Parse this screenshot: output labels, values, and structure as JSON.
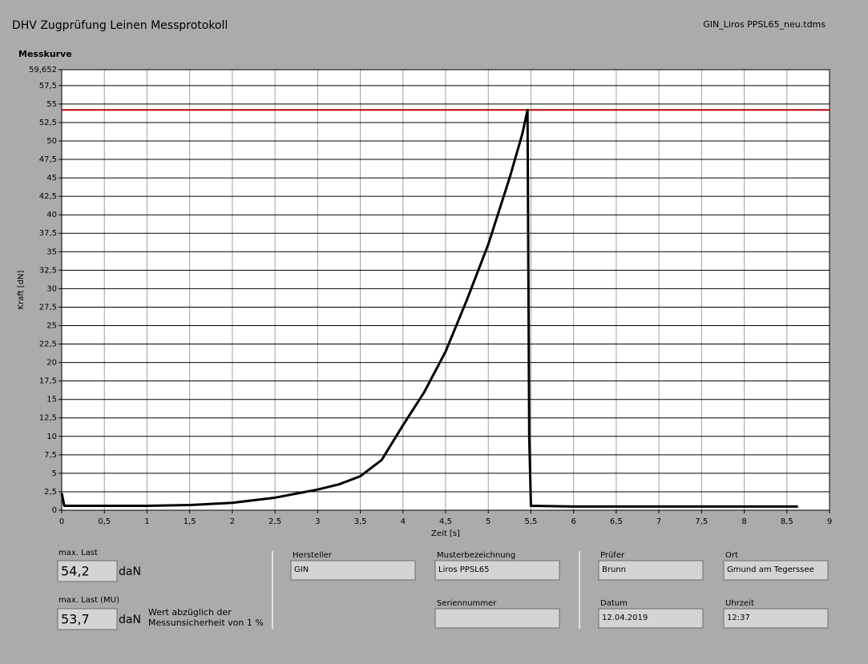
{
  "header": {
    "title": "DHV Zugprüfung Leinen Messprotokoll",
    "file": "GIN_Liros PPSL65_neu.tdms"
  },
  "chart_data": {
    "type": "line",
    "title": "Messkurve",
    "x_label": "Zeit [s]",
    "y_label": "Kraft [dN]",
    "x": [
      0,
      0.03,
      0.5,
      1,
      1.5,
      2,
      2.5,
      3,
      3.25,
      3.5,
      3.75,
      4,
      4.25,
      4.5,
      4.75,
      5,
      5.25,
      5.4,
      5.46,
      5.48,
      5.5,
      6,
      7,
      8,
      8.63
    ],
    "values": [
      2.3,
      0.6,
      0.6,
      0.6,
      0.7,
      1.0,
      1.7,
      2.8,
      3.5,
      4.6,
      6.8,
      11.5,
      16,
      21.5,
      28.5,
      36,
      45,
      51,
      54.2,
      10,
      0.6,
      0.5,
      0.5,
      0.5,
      0.5
    ],
    "color": "#000000",
    "reference_line": {
      "value": 54.2,
      "color": "#c00000"
    },
    "xlim": [
      0,
      9
    ],
    "ylim": [
      0,
      59.652
    ],
    "xticks": [
      0,
      {
        "value": 0.5,
        "label": "0,5"
      },
      1,
      {
        "value": 1.5,
        "label": "1,5"
      },
      2,
      {
        "value": 2.5,
        "label": "2,5"
      },
      3,
      {
        "value": 3.5,
        "label": "3,5"
      },
      4,
      {
        "value": 4.5,
        "label": "4,5"
      },
      5,
      {
        "value": 5.5,
        "label": "5,5"
      },
      6,
      {
        "value": 6.5,
        "label": "6,5"
      },
      7,
      {
        "value": 7.5,
        "label": "7,5"
      },
      8,
      {
        "value": 8.5,
        "label": "8,5"
      },
      9
    ],
    "yticks": [
      0,
      {
        "value": 2.5,
        "label": "2,5"
      },
      5,
      {
        "value": 7.5,
        "label": "7,5"
      },
      10,
      {
        "value": 12.5,
        "label": "12,5"
      },
      15,
      {
        "value": 17.5,
        "label": "17,5"
      },
      20,
      {
        "value": 22.5,
        "label": "22,5"
      },
      25,
      {
        "value": 27.5,
        "label": "27,5"
      },
      30,
      {
        "value": 32.5,
        "label": "32,5"
      },
      35,
      {
        "value": 37.5,
        "label": "37,5"
      },
      40,
      {
        "value": 42.5,
        "label": "42,5"
      },
      45,
      {
        "value": 47.5,
        "label": "47,5"
      },
      50,
      {
        "value": 52.5,
        "label": "52,5"
      },
      55,
      {
        "value": 57.5,
        "label": "57,5"
      },
      {
        "value": 59.652,
        "label": "59,652"
      }
    ],
    "grid": true
  },
  "max_load": {
    "label": "max. Last",
    "value": "54,2",
    "unit": "daN"
  },
  "max_load_mu": {
    "label": "max. Last (MU)",
    "value": "53,7",
    "unit": "daN",
    "note": [
      "Wert abzüglich der",
      "Messunsicherheit von 1 %"
    ]
  },
  "fields": [
    {
      "label": "Hersteller",
      "value": "GIN"
    },
    {
      "label": "Musterbezeichnung",
      "value": "Liros PPSL65"
    },
    {
      "label": "Seriennummer"
    },
    {
      "label": "Prüfer",
      "value": "Brunn"
    },
    {
      "label": "Ort",
      "value": "Gmund am Tegerssee"
    },
    {
      "label": "Datum",
      "value": "12.04.2019"
    },
    {
      "label": "Uhrzeit",
      "value": "12:37"
    }
  ]
}
